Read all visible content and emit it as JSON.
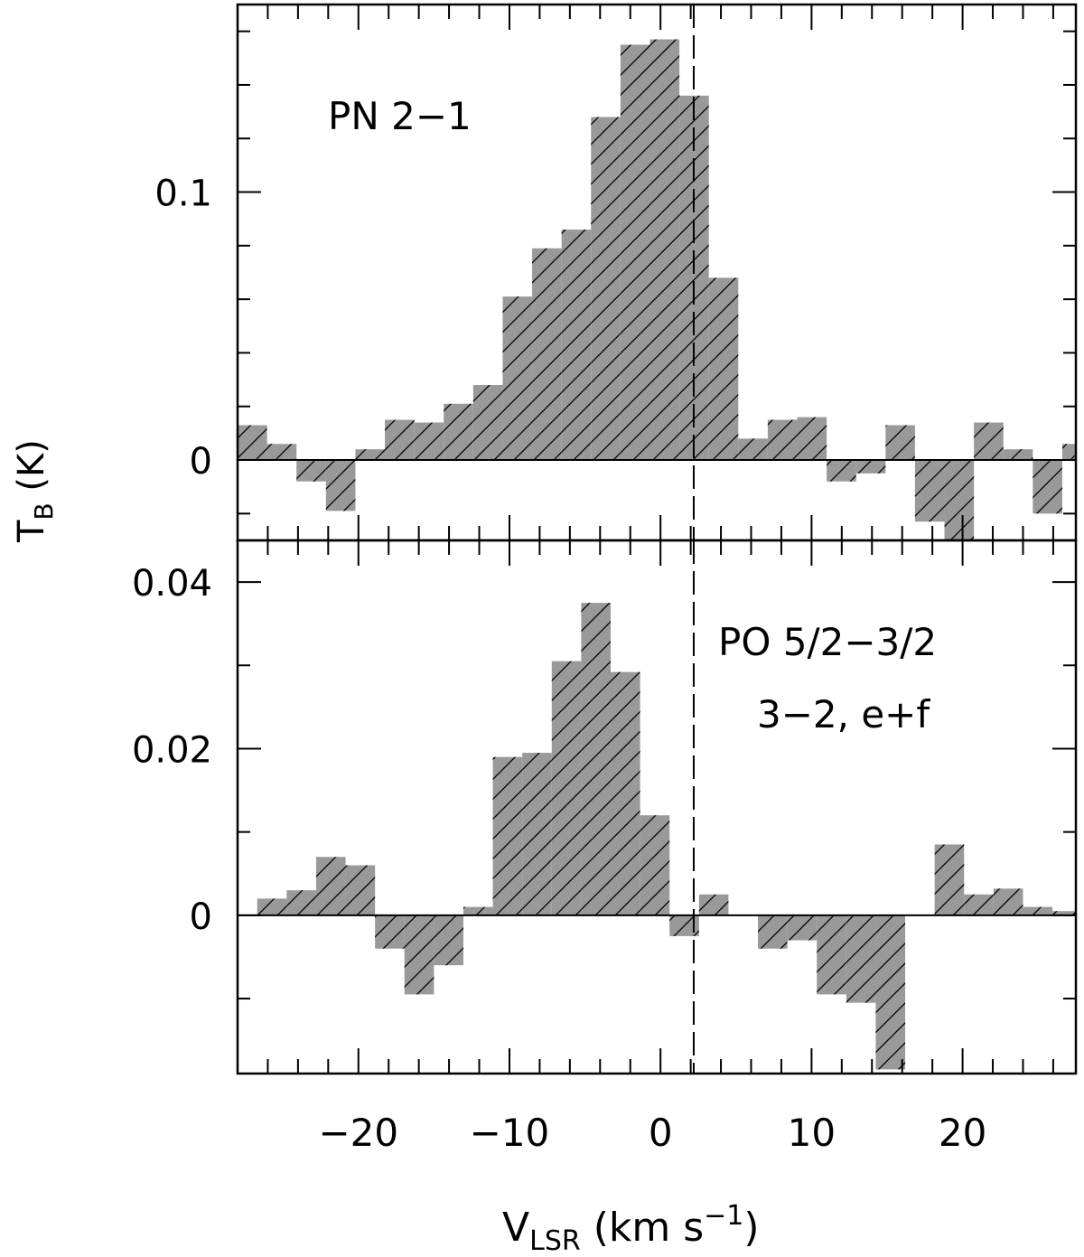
{
  "chart_data": [
    {
      "type": "histogram",
      "panel": "top",
      "annotation": "PN 2−1",
      "ylim": [
        -0.03,
        0.17
      ],
      "y_ticks": [
        {
          "v": 0,
          "label": "0"
        },
        {
          "v": 0.1,
          "label": "0.1"
        }
      ],
      "bin_width": 1.95,
      "bins_x_start": -28,
      "values": [
        0.013,
        0.006,
        -0.008,
        -0.019,
        0.004,
        0.015,
        0.014,
        0.021,
        0.028,
        0.061,
        0.079,
        0.086,
        0.128,
        0.155,
        0.157,
        0.136,
        0.068,
        0.008,
        0.015,
        0.016,
        -0.008,
        -0.005,
        0.013,
        -0.023,
        -0.03,
        0.014,
        0.004,
        -0.02,
        0.006
      ]
    },
    {
      "type": "histogram",
      "panel": "bottom",
      "annotation_lines": [
        "PO 5/2−3/2",
        "3−2, e+f"
      ],
      "ylim": [
        -0.019,
        0.045
      ],
      "y_ticks": [
        {
          "v": 0,
          "label": "0"
        },
        {
          "v": 0.02,
          "label": "0.02"
        },
        {
          "v": 0.04,
          "label": "0.04"
        }
      ],
      "bin_width": 1.95,
      "bins_x_start": -26.7,
      "values": [
        0.002,
        0.003,
        0.007,
        0.006,
        -0.004,
        -0.0095,
        -0.006,
        0.001,
        0.019,
        0.0195,
        0.0305,
        0.0375,
        0.0292,
        0.012,
        -0.0025,
        0.0025,
        0.0,
        -0.004,
        -0.003,
        -0.0095,
        -0.0105,
        -0.0185,
        0.0,
        0.0085,
        0.0025,
        0.0032,
        0.001,
        0.0005
      ]
    }
  ],
  "axes": {
    "x_range": [
      -28,
      27.5
    ],
    "x_ticks": [
      {
        "v": -20,
        "label": "−20"
      },
      {
        "v": -10,
        "label": "−10"
      },
      {
        "v": 0,
        "label": "0"
      },
      {
        "v": 10,
        "label": "10"
      },
      {
        "v": 20,
        "label": "20"
      }
    ],
    "x_label_main": "V",
    "x_label_sub": "LSR",
    "x_label_units": " (km s",
    "x_label_sup": "−1",
    "x_label_close": ")",
    "y_label_main": "T",
    "y_label_sub": "B",
    "y_label_units": " (K)",
    "reference_velocity": 2.2,
    "fill_color": "#999999"
  }
}
